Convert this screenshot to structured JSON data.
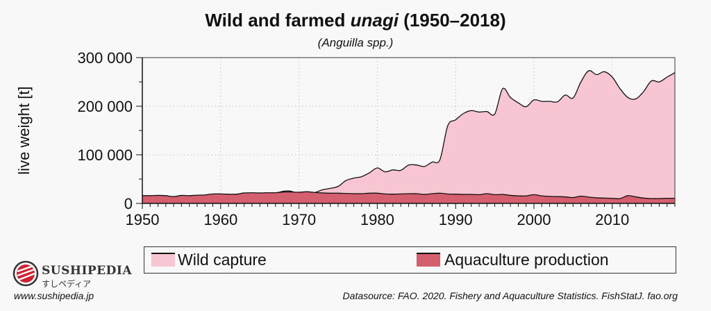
{
  "chart_data": {
    "type": "area",
    "title": "Wild and farmed unagi (1950–2018)",
    "title_parts": [
      "Wild and farmed ",
      "unagi",
      " (1950–2018)"
    ],
    "subtitle": "(Anguilla spp.)",
    "xlabel": "",
    "ylabel": "live weight [t]",
    "xlim": [
      1950,
      2018
    ],
    "ylim": [
      0,
      300000
    ],
    "x_ticks": [
      "1950",
      "1960",
      "1970",
      "1980",
      "1990",
      "2000",
      "2010"
    ],
    "y_ticks": [
      "0",
      "100 000",
      "200 000",
      "300 000"
    ],
    "grid": true,
    "legend_position": "bottom",
    "x": [
      1950,
      1951,
      1952,
      1953,
      1954,
      1955,
      1956,
      1957,
      1958,
      1959,
      1960,
      1961,
      1962,
      1963,
      1964,
      1965,
      1966,
      1967,
      1968,
      1969,
      1970,
      1971,
      1972,
      1973,
      1974,
      1975,
      1976,
      1977,
      1978,
      1979,
      1980,
      1981,
      1982,
      1983,
      1984,
      1985,
      1986,
      1987,
      1988,
      1989,
      1990,
      1991,
      1992,
      1993,
      1994,
      1995,
      1996,
      1997,
      1998,
      1999,
      2000,
      2001,
      2002,
      2003,
      2004,
      2005,
      2006,
      2007,
      2008,
      2009,
      2010,
      2011,
      2012,
      2013,
      2014,
      2015,
      2016,
      2017,
      2018
    ],
    "series": [
      {
        "name": "Wild capture",
        "color": "#f7c6d2",
        "values": [
          2000,
          2500,
          3000,
          3500,
          4000,
          5000,
          6000,
          7000,
          8000,
          8000,
          9000,
          11000,
          10000,
          13000,
          16000,
          18000,
          19000,
          21000,
          25000,
          25000,
          19000,
          19000,
          22000,
          28000,
          31000,
          35000,
          47000,
          52000,
          55000,
          63000,
          73000,
          65000,
          69000,
          68000,
          79000,
          79000,
          76000,
          85000,
          90000,
          160000,
          172000,
          185000,
          191000,
          188000,
          189000,
          184000,
          236000,
          218000,
          207000,
          199000,
          213000,
          210000,
          210000,
          209000,
          223000,
          217000,
          250000,
          273000,
          265000,
          271000,
          260000,
          236000,
          218000,
          215000,
          230000,
          252000,
          250000,
          260000,
          269000
        ]
      },
      {
        "name": "Aquaculture production",
        "color": "#d4606f",
        "values": [
          16000,
          16000,
          16500,
          16000,
          14000,
          16500,
          16000,
          17000,
          17500,
          19500,
          19500,
          19000,
          19000,
          21500,
          22000,
          21500,
          22000,
          22000,
          23500,
          23500,
          23000,
          24000,
          22500,
          21500,
          21000,
          21000,
          20500,
          20000,
          20000,
          21000,
          21000,
          19500,
          19000,
          19500,
          20000,
          20000,
          18500,
          20000,
          21000,
          19500,
          19000,
          18500,
          18500,
          18000,
          20000,
          18000,
          18500,
          16500,
          15500,
          15500,
          18000,
          15500,
          14500,
          14000,
          13500,
          12000,
          15000,
          13000,
          11500,
          11000,
          10500,
          10000,
          16000,
          13500,
          11000,
          10000,
          10000,
          10500,
          10500
        ]
      }
    ]
  },
  "branding": {
    "name": "Sushipedia",
    "name_jp": "すしペディア",
    "url": "www.sushipedia.jp"
  },
  "source": "Datasource: FAO. 2020. Fishery and Aquaculture Statistics. FishStatJ. fao.org"
}
